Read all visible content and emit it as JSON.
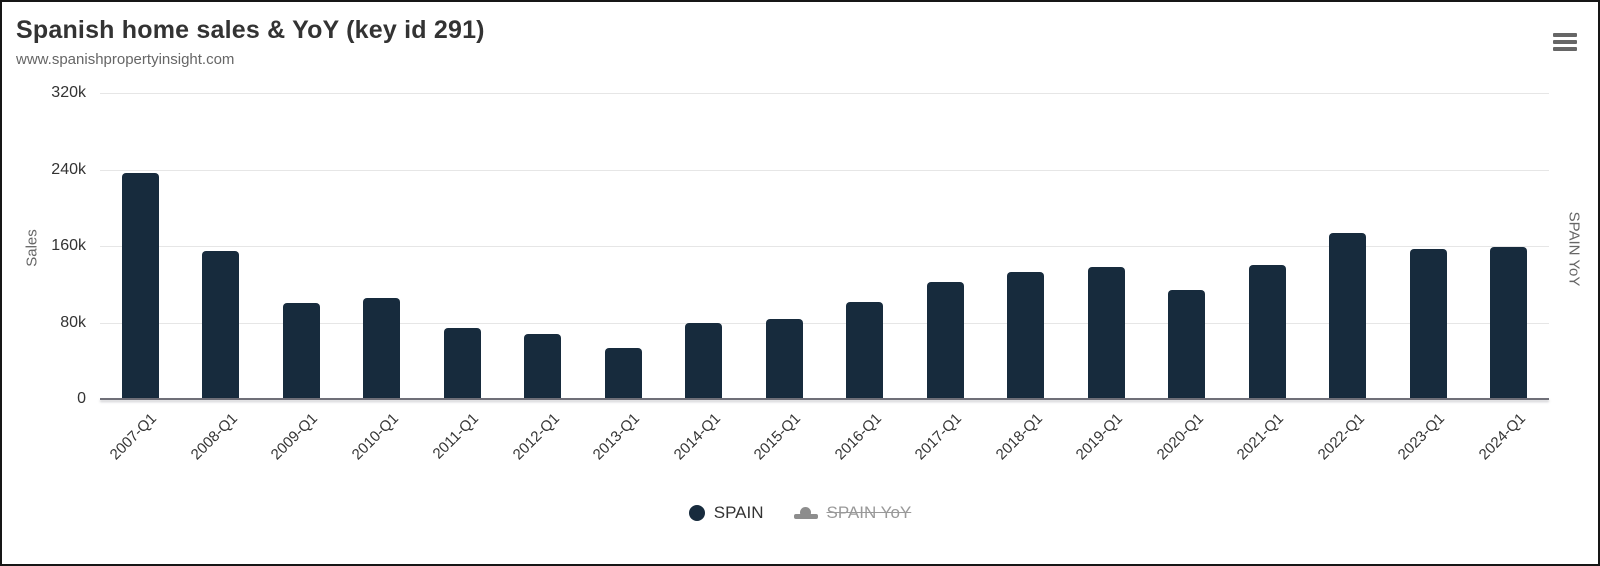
{
  "header": {
    "title": "Spanish home sales & YoY (key id 291)",
    "subtitle": "www.spanishpropertyinsight.com"
  },
  "chart_data": {
    "type": "bar",
    "title": "Spanish home sales & YoY (key id 291)",
    "subtitle": "www.spanishpropertyinsight.com",
    "categories": [
      "2007-Q1",
      "2008-Q1",
      "2009-Q1",
      "2010-Q1",
      "2011-Q1",
      "2012-Q1",
      "2013-Q1",
      "2014-Q1",
      "2015-Q1",
      "2016-Q1",
      "2017-Q1",
      "2018-Q1",
      "2019-Q1",
      "2020-Q1",
      "2021-Q1",
      "2022-Q1",
      "2023-Q1",
      "2024-Q1"
    ],
    "series": [
      {
        "name": "SPAIN",
        "visible": true,
        "color": "#172b3d",
        "values": [
          236000,
          155000,
          100000,
          106000,
          74000,
          68000,
          53000,
          80000,
          84000,
          101000,
          122000,
          133000,
          138000,
          114000,
          140000,
          174000,
          157000,
          159000
        ]
      },
      {
        "name": "SPAIN YoY",
        "visible": false,
        "values": []
      }
    ],
    "x_label_rotation": -45,
    "y_axis_left": {
      "title": "Sales",
      "tick_labels": [
        "0",
        "80k",
        "160k",
        "240k",
        "320k"
      ],
      "min": 0,
      "max": 320000
    },
    "y_axis_right": {
      "title": "SPAIN YoY",
      "tick_labels": []
    },
    "legend": {
      "position": "bottom",
      "items": [
        {
          "label": "SPAIN",
          "enabled": true
        },
        {
          "label": "SPAIN YoY",
          "enabled": false
        }
      ]
    },
    "grid": true
  },
  "colors": {
    "bar": "#172b3d",
    "grid": "#e6e6e6",
    "axis_line": "#6f6f78",
    "title": "#333333",
    "subtitle": "#666666",
    "tick_label": "#333333",
    "axis_title": "#666666",
    "legend_enabled": "#333333",
    "legend_disabled": "#999999",
    "menu_icon": "#666666"
  }
}
